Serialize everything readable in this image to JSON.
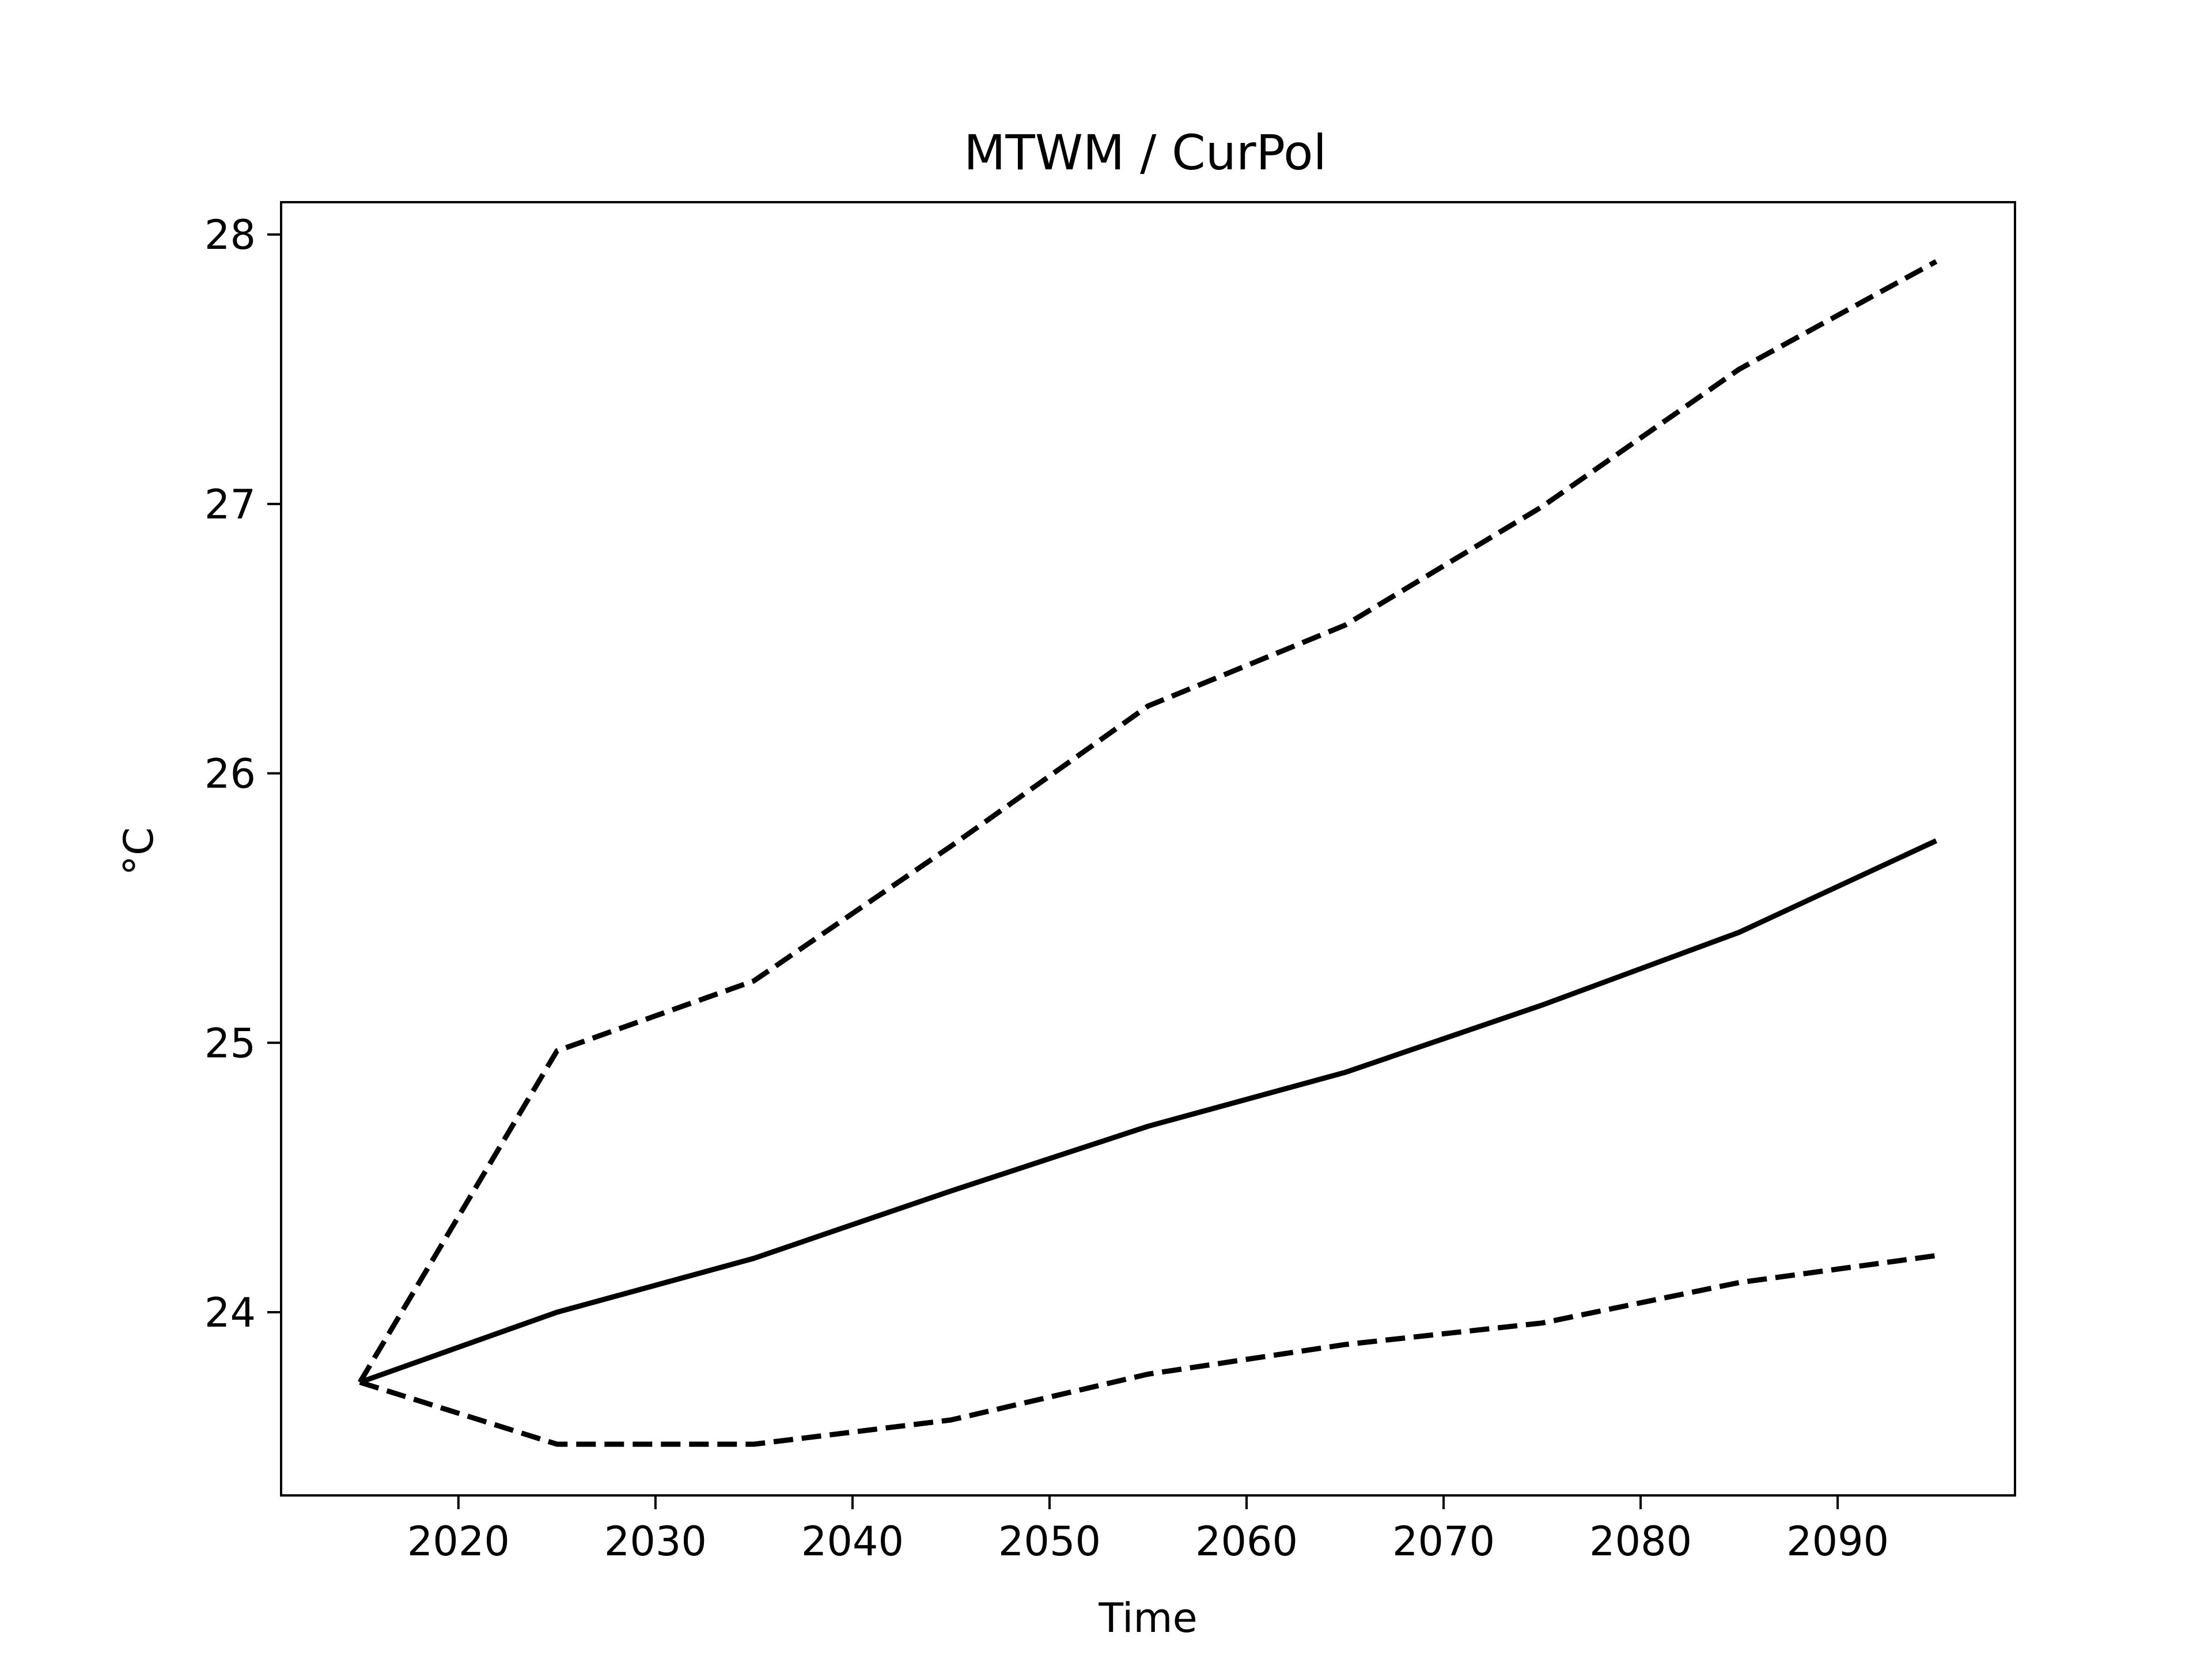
{
  "chart_data": {
    "type": "line",
    "title": "MTWM / CurPol",
    "xlabel": "Time",
    "ylabel": "°C",
    "xlim": [
      2011,
      2099
    ],
    "ylim": [
      23.32,
      28.12
    ],
    "xticks": [
      2020,
      2030,
      2040,
      2050,
      2060,
      2070,
      2080,
      2090
    ],
    "yticks": [
      24,
      25,
      26,
      27,
      28
    ],
    "grid": false,
    "legend": "none",
    "color": "#000000",
    "x": [
      2015,
      2025,
      2035,
      2045,
      2055,
      2065,
      2075,
      2085,
      2095
    ],
    "series": [
      {
        "style": "solid",
        "values": [
          23.74,
          24.0,
          24.2,
          24.45,
          24.69,
          24.89,
          25.14,
          25.41,
          25.75
        ]
      },
      {
        "style": "dashed",
        "values": [
          23.74,
          24.97,
          25.23,
          25.73,
          26.25,
          26.55,
          26.99,
          27.5,
          27.9
        ]
      },
      {
        "style": "dashed",
        "values": [
          23.74,
          23.51,
          23.51,
          23.6,
          23.77,
          23.88,
          23.96,
          24.11,
          24.21
        ]
      }
    ]
  }
}
